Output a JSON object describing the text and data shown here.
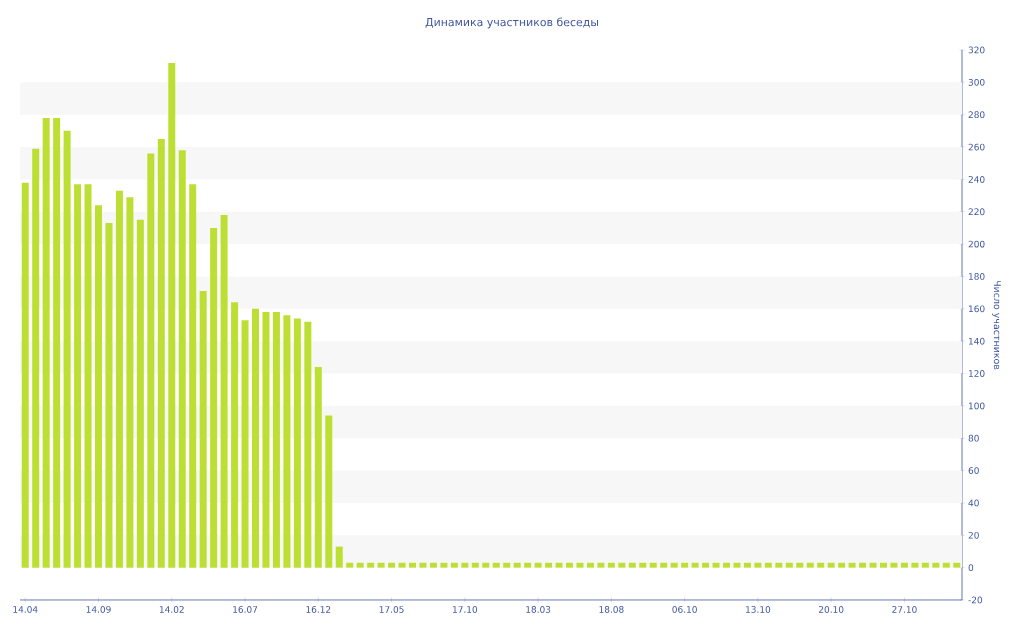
{
  "chart_data": {
    "type": "bar",
    "title": "Динамика участников беседы",
    "ylabel": "Число участников",
    "categories": [
      "14.04",
      null,
      null,
      null,
      null,
      null,
      null,
      "14.09",
      null,
      null,
      null,
      null,
      null,
      null,
      "14.02",
      null,
      null,
      null,
      null,
      null,
      null,
      "16.07",
      null,
      null,
      null,
      null,
      null,
      null,
      "16.12",
      null,
      null,
      null,
      null,
      null,
      null,
      "17.05",
      null,
      null,
      null,
      null,
      null,
      null,
      "17.10",
      null,
      null,
      null,
      null,
      null,
      null,
      "18.03",
      null,
      null,
      null,
      null,
      null,
      null,
      "18.08",
      null,
      null,
      null,
      null,
      null,
      null,
      "06.10",
      null,
      null,
      null,
      null,
      null,
      null,
      "13.10",
      null,
      null,
      null,
      null,
      null,
      null,
      "20.10",
      null,
      null,
      null,
      null,
      null,
      null,
      "27.10",
      null,
      null,
      null,
      null,
      null
    ],
    "values": [
      238,
      259,
      278,
      278,
      270,
      237,
      237,
      224,
      213,
      233,
      229,
      215,
      256,
      265,
      312,
      258,
      237,
      171,
      210,
      218,
      164,
      153,
      160,
      158,
      158,
      156,
      154,
      152,
      124,
      94,
      13,
      3,
      3,
      3,
      3,
      3,
      3,
      3,
      3,
      3,
      3,
      3,
      3,
      3,
      3,
      3,
      3,
      3,
      3,
      3,
      3,
      3,
      3,
      3,
      3,
      3,
      3,
      3,
      3,
      3,
      3,
      3,
      3,
      3,
      3,
      3,
      3,
      3,
      3,
      3,
      3,
      3,
      3,
      3,
      3,
      3,
      3,
      3,
      3,
      3,
      3,
      3,
      3,
      3,
      3,
      3,
      3,
      3,
      3,
      3
    ],
    "color": "#bddf33",
    "ylim": [
      -20,
      320
    ],
    "yticks": [
      -20,
      0,
      20,
      40,
      60,
      80,
      100,
      120,
      140,
      160,
      180,
      200,
      220,
      240,
      260,
      280,
      300,
      320
    ]
  }
}
